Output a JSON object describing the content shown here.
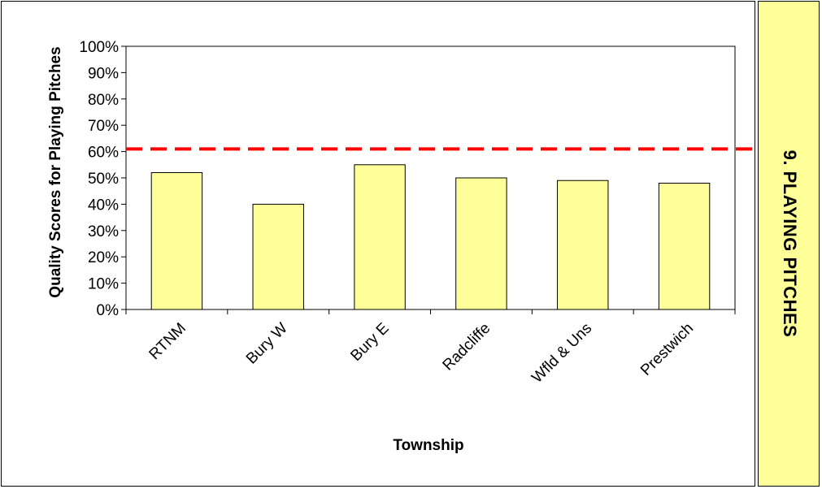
{
  "chart_data": {
    "type": "bar",
    "categories": [
      "RTNM",
      "Bury W",
      "Bury E",
      "Radcliffe",
      "Wfld & Uns",
      "Prestwich"
    ],
    "values": [
      52,
      40,
      55,
      50,
      49,
      48
    ],
    "value_format": "percent",
    "ylabel": "Quality Scores for Playing Pitches",
    "xlabel": "Township",
    "ylim": [
      0,
      100
    ],
    "ytick_step": 10,
    "yticks": [
      "0%",
      "10%",
      "20%",
      "30%",
      "40%",
      "50%",
      "60%",
      "70%",
      "80%",
      "90%",
      "100%"
    ],
    "reference_line": {
      "value": 61,
      "style": "dashed",
      "color": "#ff0000"
    },
    "bar_color": "#ffff99",
    "grid": false,
    "legend": "none"
  },
  "side_tab": {
    "label": "9. PLAYING PITCHES",
    "color": "#ffff99"
  }
}
